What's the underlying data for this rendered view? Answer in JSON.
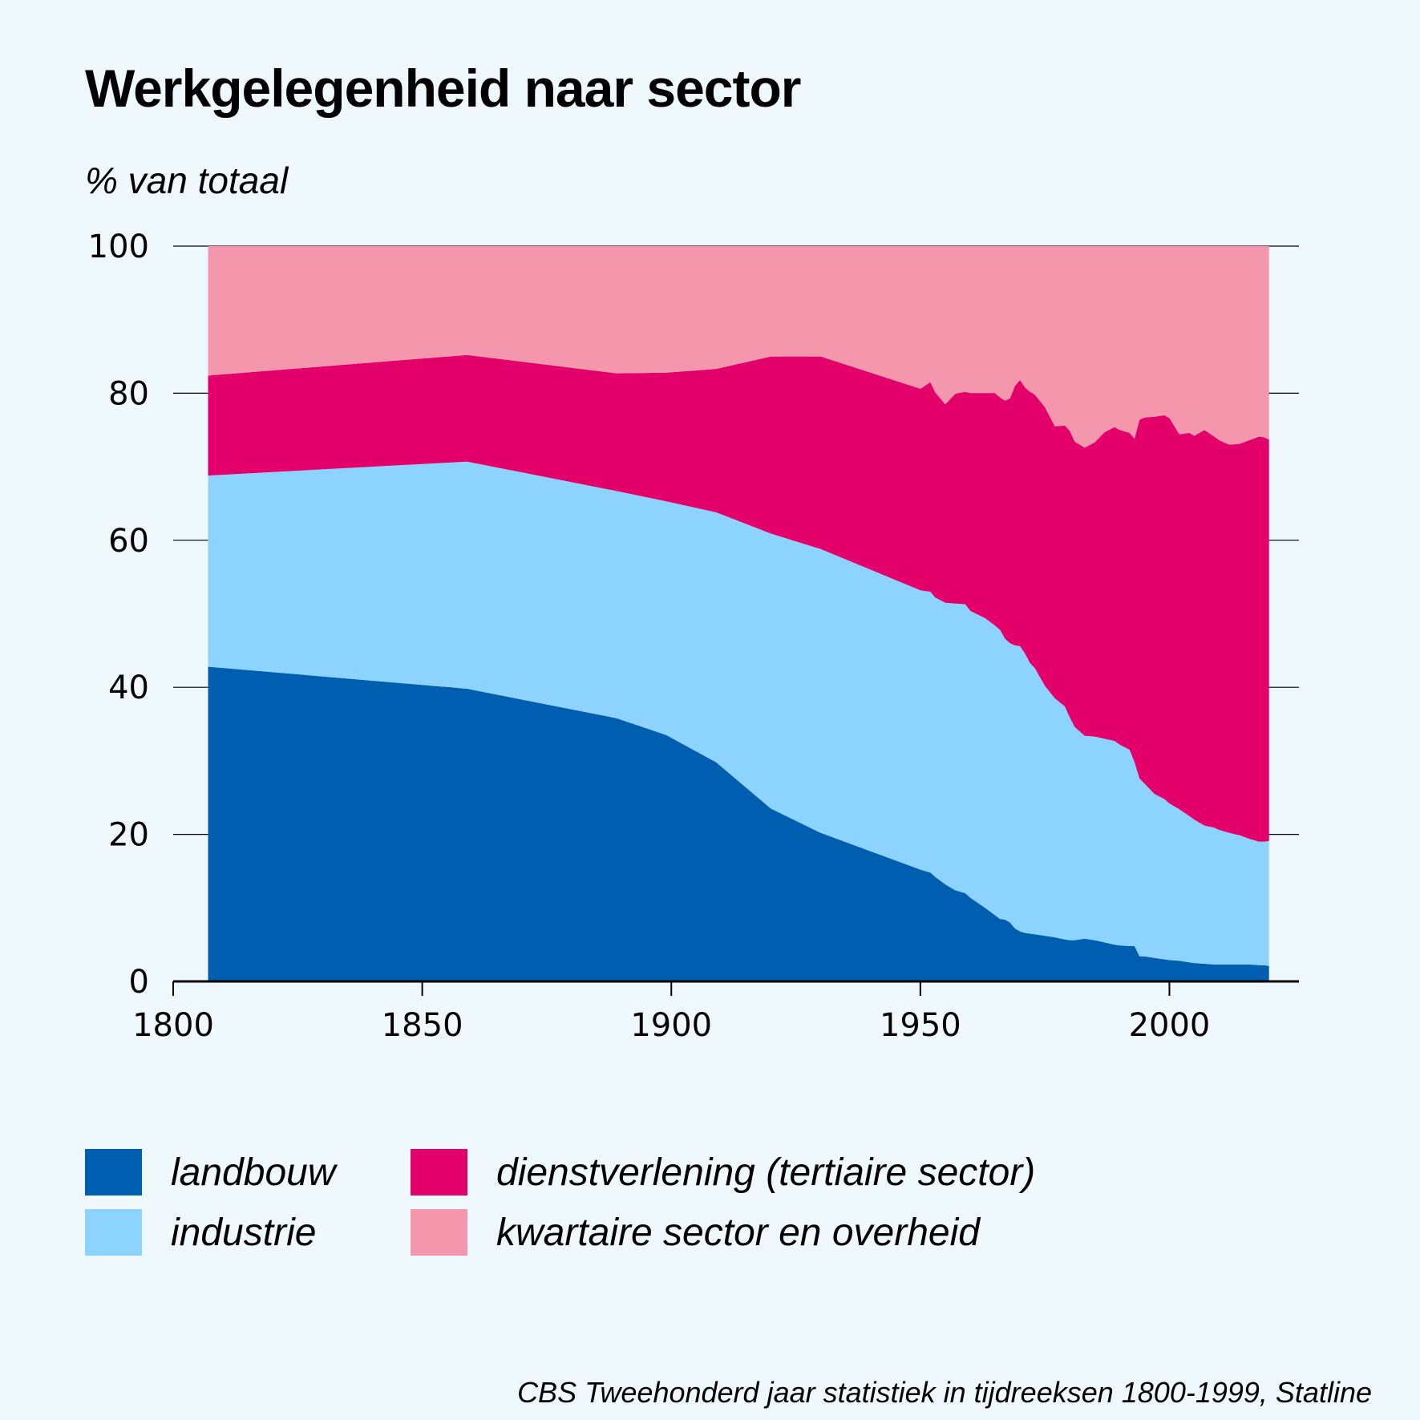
{
  "title": "Werkgelegenheid naar sector",
  "ylabel": "% van totaal",
  "source": "CBS Tweehonderd jaar statistiek in tijdreeksen 1800-1999, Statline",
  "colors": {
    "background": "#eef8fd",
    "landbouw": "#005eb0",
    "industrie": "#8cd3ff",
    "dienstverlening": "#e4006b",
    "kwartair": "#f497ad"
  },
  "legend": [
    {
      "key": "landbouw",
      "label": "landbouw"
    },
    {
      "key": "industrie",
      "label": "industrie"
    },
    {
      "key": "dienstverlening",
      "label": "dienstverlening (tertiaire sector)"
    },
    {
      "key": "kwartair",
      "label": "kwartaire sector en overheid"
    }
  ],
  "chart_data": {
    "type": "area",
    "stacked": true,
    "title": "Werkgelegenheid naar sector",
    "ylabel": "% van totaal",
    "xlabel": "",
    "xlim": [
      1800,
      2026
    ],
    "ylim": [
      0,
      100
    ],
    "xticks": [
      1800,
      1850,
      1900,
      1950,
      2000
    ],
    "yticks": [
      0,
      20,
      40,
      60,
      80,
      100
    ],
    "grid": "horizontal",
    "x": [
      1807,
      1859,
      1889,
      1899,
      1909,
      1920,
      1930,
      1950,
      1952,
      1953,
      1955,
      1957,
      1959,
      1960,
      1963,
      1965,
      1966,
      1967,
      1968,
      1969,
      1970,
      1971,
      1972,
      1973,
      1975,
      1977,
      1979,
      1980,
      1981,
      1983,
      1985,
      1987,
      1989,
      1990,
      1992,
      1993,
      1994,
      1995,
      1997,
      1999,
      2000,
      2002,
      2004,
      2005,
      2007,
      2009,
      2010,
      2012,
      2014,
      2016,
      2018,
      2019,
      2020
    ],
    "series": [
      {
        "name": "landbouw",
        "values": [
          42.8,
          39.8,
          35.8,
          33.5,
          29.8,
          23.5,
          20.2,
          15.2,
          14.8,
          14.2,
          13.2,
          12.4,
          12.0,
          11.4,
          10.0,
          9.0,
          8.5,
          8.4,
          8.0,
          7.2,
          6.8,
          6.6,
          6.5,
          6.4,
          6.2,
          6.0,
          5.7,
          5.6,
          5.6,
          5.8,
          5.6,
          5.3,
          5.0,
          4.9,
          4.8,
          4.8,
          3.4,
          3.4,
          3.2,
          3.0,
          2.9,
          2.8,
          2.6,
          2.5,
          2.4,
          2.3,
          2.3,
          2.3,
          2.3,
          2.3,
          2.2,
          2.2,
          2.1
        ]
      },
      {
        "name": "industrie",
        "values": [
          26.0,
          30.9,
          30.9,
          31.8,
          34.0,
          37.4,
          38.6,
          38.0,
          38.2,
          38.0,
          38.3,
          39.0,
          39.3,
          39.0,
          39.4,
          39.4,
          39.3,
          38.2,
          38.0,
          38.5,
          38.8,
          38.0,
          36.8,
          36.2,
          34.0,
          32.5,
          31.7,
          30.3,
          29.0,
          27.6,
          27.7,
          27.7,
          27.7,
          27.3,
          26.7,
          25.0,
          24.2,
          23.5,
          22.3,
          21.8,
          21.3,
          20.6,
          19.9,
          19.5,
          18.8,
          18.6,
          18.3,
          17.9,
          17.6,
          17.1,
          16.8,
          16.8,
          17.0
        ]
      },
      {
        "name": "dienstverlening (tertiaire sector)",
        "values": [
          13.6,
          14.5,
          16.0,
          17.5,
          19.5,
          24.1,
          26.2,
          27.4,
          28.5,
          27.9,
          27.0,
          28.5,
          28.9,
          29.6,
          30.6,
          31.6,
          31.6,
          32.4,
          33.3,
          35.3,
          36.2,
          36.2,
          36.9,
          37.2,
          37.9,
          37.0,
          38.2,
          39.0,
          38.8,
          39.2,
          40.0,
          41.7,
          42.7,
          42.8,
          43.1,
          44.0,
          48.8,
          49.8,
          51.3,
          52.2,
          52.4,
          51.0,
          52.1,
          52.2,
          53.8,
          53.2,
          53.0,
          52.8,
          53.2,
          54.2,
          55.1,
          55.0,
          54.6
        ]
      },
      {
        "name": "kwartaire sector en overheid",
        "values": [
          17.6,
          14.8,
          17.3,
          17.2,
          16.7,
          15.0,
          15.0,
          19.4,
          18.5,
          19.9,
          21.5,
          20.1,
          19.8,
          20.0,
          20.0,
          20.0,
          20.6,
          21.0,
          20.7,
          19.0,
          18.2,
          19.2,
          19.8,
          20.2,
          21.9,
          24.5,
          24.4,
          25.1,
          26.6,
          27.4,
          26.7,
          25.3,
          24.6,
          25.0,
          25.4,
          26.2,
          23.6,
          23.3,
          23.2,
          23.0,
          23.4,
          25.6,
          25.4,
          25.8,
          25.0,
          25.9,
          26.4,
          27.0,
          26.9,
          26.4,
          25.9,
          26.0,
          26.3
        ]
      }
    ]
  }
}
